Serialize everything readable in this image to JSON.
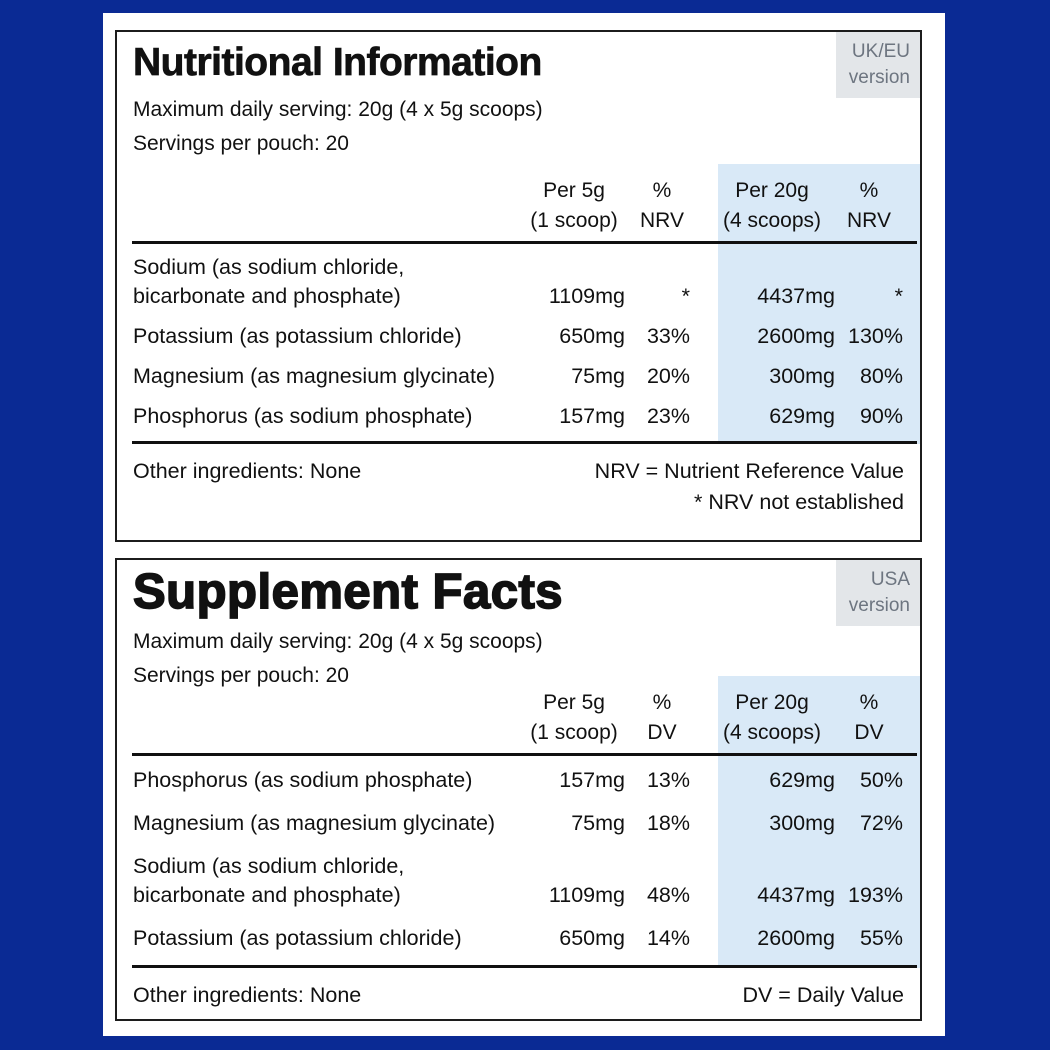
{
  "colors": {
    "background": "#0a2a94",
    "highlight_band": "#d9e9f7",
    "version_badge_bg": "#e3e6e9",
    "version_badge_text": "#6d7580",
    "text": "#111111"
  },
  "panels": [
    {
      "title": "Nutritional Information",
      "version": [
        "UK/EU",
        "version"
      ],
      "serving_line_1": "Maximum daily serving: 20g (4 x 5g scoops)",
      "serving_line_2": "Servings per pouch: 20",
      "header": {
        "qty1": [
          "Per 5g",
          "(1 scoop)"
        ],
        "pct1": [
          "%",
          "NRV"
        ],
        "qty2": [
          "Per 20g",
          "(4 scoops)"
        ],
        "pct2": [
          "%",
          "NRV"
        ]
      },
      "rows": [
        {
          "name": [
            "Sodium (as sodium chloride,",
            "bicarbonate and phosphate)"
          ],
          "per_5g": "1109mg",
          "pct_1": "*",
          "per_20g": "4437mg",
          "pct_2": "*"
        },
        {
          "name": [
            "Potassium (as potassium chloride)"
          ],
          "per_5g": "650mg",
          "pct_1": "33%",
          "per_20g": "2600mg",
          "pct_2": "130%"
        },
        {
          "name": [
            "Magnesium (as magnesium glycinate)"
          ],
          "per_5g": "75mg",
          "pct_1": "20%",
          "per_20g": "300mg",
          "pct_2": "80%"
        },
        {
          "name": [
            "Phosphorus (as sodium phosphate)"
          ],
          "per_5g": "157mg",
          "pct_1": "23%",
          "per_20g": "629mg",
          "pct_2": "90%"
        }
      ],
      "footer_left": "Other ingredients: None",
      "footer_right": [
        "NRV = Nutrient Reference Value",
        "* NRV not established"
      ]
    },
    {
      "title": "Supplement Facts",
      "version": [
        "USA",
        "version"
      ],
      "serving_line_1": "Maximum daily serving: 20g (4 x 5g scoops)",
      "serving_line_2": "Servings per pouch: 20",
      "header": {
        "qty1": [
          "Per 5g",
          "(1 scoop)"
        ],
        "pct1": [
          "%",
          "DV"
        ],
        "qty2": [
          "Per 20g",
          "(4 scoops)"
        ],
        "pct2": [
          "%",
          "DV"
        ]
      },
      "rows": [
        {
          "name": [
            "Phosphorus (as sodium phosphate)"
          ],
          "per_5g": "157mg",
          "pct_1": "13%",
          "per_20g": "629mg",
          "pct_2": "50%"
        },
        {
          "name": [
            "Magnesium (as magnesium glycinate)"
          ],
          "per_5g": "75mg",
          "pct_1": "18%",
          "per_20g": "300mg",
          "pct_2": "72%"
        },
        {
          "name": [
            "Sodium (as sodium chloride,",
            "bicarbonate and phosphate)"
          ],
          "per_5g": "1109mg",
          "pct_1": "48%",
          "per_20g": "4437mg",
          "pct_2": "193%"
        },
        {
          "name": [
            "Potassium (as potassium chloride)"
          ],
          "per_5g": "650mg",
          "pct_1": "14%",
          "per_20g": "2600mg",
          "pct_2": "55%"
        }
      ],
      "footer_left": "Other ingredients: None",
      "footer_right": [
        "DV = Daily Value"
      ]
    }
  ]
}
